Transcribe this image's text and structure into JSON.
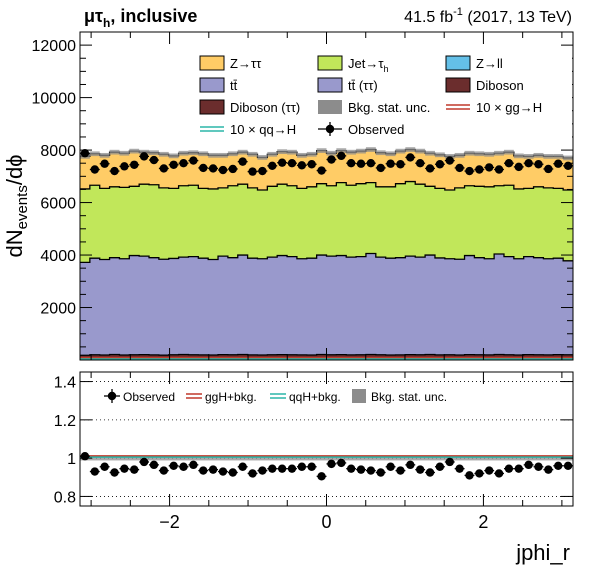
{
  "header": {
    "channel_main": "μτ",
    "channel_sub": "h",
    "channel_suffix": ", inclusive",
    "lumi_prefix": "41.5 fb",
    "lumi_exp": "-1",
    "lumi_suffix": " (2017, 13 TeV)"
  },
  "colors": {
    "ztt": "#ffcc66",
    "jetfakes": "#c1e75a",
    "zll": "#64c0e8",
    "ttbar": "#9999cc",
    "ttbar_tautau": "#9999cc",
    "diboson": "#6b2d2d",
    "diboson_tautau": "#6b2d2d",
    "bkg_unc": "#8c8c8c",
    "ggh_line": "#c0392b",
    "qqh_line": "#2bb6a8",
    "observed": "#000000"
  },
  "legend_main": [
    {
      "label": "Z→ττ",
      "key": "ztt",
      "style": "fill"
    },
    {
      "label": "Jet→τ",
      "sub": "h",
      "key": "jetfakes",
      "style": "fill"
    },
    {
      "label": "Z→ll",
      "key": "zll",
      "style": "fill"
    },
    {
      "label": "tt̄",
      "key": "ttbar",
      "style": "fill"
    },
    {
      "label": "tt̄ (ττ)",
      "key": "ttbar_tautau",
      "style": "fill"
    },
    {
      "label": "Diboson",
      "key": "diboson",
      "style": "fill"
    },
    {
      "label": "Diboson (ττ)",
      "key": "diboson_tautau",
      "style": "fill"
    },
    {
      "label": "Bkg. stat. unc.",
      "key": "bkg_unc",
      "style": "fill"
    },
    {
      "label": "10 × gg→H",
      "key": "ggh_line",
      "style": "line"
    },
    {
      "label": "10 × qq→H",
      "key": "qqh_line",
      "style": "line"
    },
    {
      "label": "Observed",
      "key": "observed",
      "style": "marker"
    }
  ],
  "legend_ratio": [
    {
      "label": "Observed",
      "key": "observed",
      "style": "marker"
    },
    {
      "label": "ggH+bkg.",
      "key": "ggh_line",
      "style": "line"
    },
    {
      "label": "qqH+bkg.",
      "key": "qqh_line",
      "style": "line"
    },
    {
      "label": "Bkg. stat. unc.",
      "key": "bkg_unc",
      "style": "fill"
    }
  ],
  "chart_data": [
    {
      "type": "area",
      "ylabel": "dN",
      "ylabel_sub": "events",
      "ylabel_suffix": "/dϕ",
      "xlim": [
        -3.1416,
        3.1416
      ],
      "ylim": [
        0,
        12500
      ],
      "yticks": [
        2000,
        4000,
        6000,
        8000,
        10000,
        12000
      ],
      "n_bins": 50,
      "stack_order": [
        "diboson",
        "ttbar",
        "jetfakes",
        "ztt"
      ],
      "stack_top": {
        "diboson": [
          180,
          200,
          190,
          210,
          190,
          200,
          205,
          195,
          185,
          200,
          210,
          200,
          195,
          190,
          205,
          200,
          210,
          195,
          190,
          200,
          205,
          200,
          195,
          190,
          210,
          200,
          205,
          195,
          200,
          210,
          200,
          190,
          195,
          205,
          200,
          210,
          195,
          200,
          190,
          205,
          200,
          195,
          210,
          200,
          190,
          205,
          200,
          195,
          205,
          200
        ],
        "ttbar": [
          3720,
          3880,
          3830,
          3900,
          3860,
          3980,
          3960,
          3900,
          3840,
          3870,
          3920,
          3940,
          3880,
          3830,
          3960,
          3900,
          4000,
          3880,
          3860,
          3920,
          3980,
          3940,
          3860,
          3880,
          4000,
          3960,
          3980,
          3920,
          3940,
          4060,
          3920,
          3880,
          3900,
          3960,
          3920,
          4000,
          3890,
          3860,
          3840,
          3980,
          3900,
          3860,
          4040,
          3940,
          3860,
          3940,
          3900,
          3860,
          3880,
          3780
        ],
        "jetfakes": [
          6520,
          6660,
          6540,
          6600,
          6580,
          6620,
          6700,
          6680,
          6560,
          6540,
          6640,
          6660,
          6540,
          6520,
          6560,
          6640,
          6700,
          6560,
          6480,
          6620,
          6700,
          6640,
          6540,
          6600,
          6720,
          6640,
          6760,
          6660,
          6720,
          6760,
          6600,
          6600,
          6720,
          6800,
          6700,
          6620,
          6540,
          6480,
          6560,
          6640,
          6620,
          6600,
          6640,
          6660,
          6520,
          6540,
          6600,
          6560,
          6540,
          6480
        ],
        "ztt": [
          7760,
          7860,
          7800,
          7920,
          7880,
          7960,
          7920,
          7900,
          7840,
          7780,
          7880,
          7900,
          7860,
          7800,
          7800,
          7860,
          7920,
          7840,
          7720,
          7840,
          7940,
          7920,
          7800,
          7840,
          7980,
          7880,
          7980,
          7920,
          7960,
          8020,
          7900,
          7860,
          7960,
          8020,
          7960,
          7880,
          7820,
          7760,
          7800,
          7880,
          7860,
          7840,
          7880,
          7920,
          7780,
          7760,
          7800,
          7760,
          7760,
          7700
        ]
      },
      "bkg_unc": 90,
      "signal_ggh_x10": 90,
      "signal_qqh_x10": 40,
      "observed": [
        7880,
        7260,
        7480,
        7200,
        7380,
        7440,
        7760,
        7620,
        7300,
        7440,
        7500,
        7600,
        7320,
        7300,
        7240,
        7280,
        7560,
        7180,
        7200,
        7400,
        7520,
        7500,
        7420,
        7460,
        7220,
        7640,
        7780,
        7500,
        7480,
        7500,
        7320,
        7480,
        7460,
        7720,
        7500,
        7300,
        7460,
        7600,
        7320,
        7200,
        7260,
        7340,
        7260,
        7500,
        7360,
        7500,
        7460,
        7280,
        7480,
        7400
      ]
    },
    {
      "type": "scatter",
      "xlabel": "jphi_r",
      "xlim": [
        -3.1416,
        3.1416
      ],
      "ylim": [
        0.75,
        1.45
      ],
      "yticks": [
        0.8,
        1.0,
        1.2,
        1.4
      ],
      "xticks": [
        -2,
        0,
        2
      ],
      "ratio_observed": [
        1.01,
        0.93,
        0.955,
        0.925,
        0.945,
        0.94,
        0.98,
        0.965,
        0.935,
        0.96,
        0.955,
        0.965,
        0.935,
        0.94,
        0.93,
        0.925,
        0.955,
        0.92,
        0.935,
        0.945,
        0.945,
        0.945,
        0.955,
        0.955,
        0.905,
        0.97,
        0.975,
        0.945,
        0.94,
        0.935,
        0.925,
        0.955,
        0.935,
        0.965,
        0.94,
        0.925,
        0.955,
        0.98,
        0.945,
        0.91,
        0.92,
        0.935,
        0.92,
        0.945,
        0.945,
        0.965,
        0.955,
        0.94,
        0.96,
        0.96
      ],
      "ggh_ratio": 1.012,
      "qqh_ratio": 1.005
    }
  ]
}
